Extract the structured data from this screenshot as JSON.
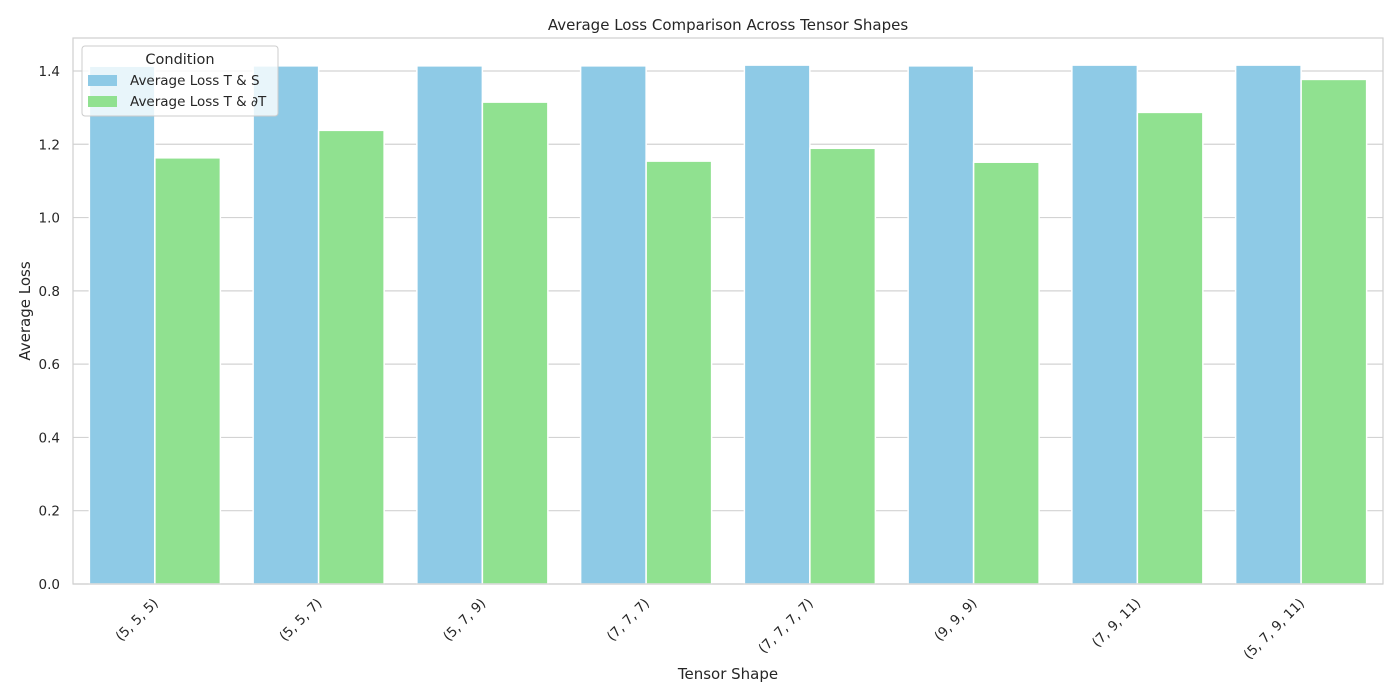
{
  "chart_data": {
    "type": "bar",
    "title": "Average Loss Comparison Across Tensor Shapes",
    "xlabel": "Tensor Shape",
    "ylabel": "Average Loss",
    "categories": [
      "(5, 5, 5)",
      "(5, 5, 7)",
      "(5, 7, 9)",
      "(7, 7, 7)",
      "(7, 7, 7, 7)",
      "(9, 9, 9)",
      "(7, 9, 11)",
      "(5, 7, 9, 11)"
    ],
    "series": [
      {
        "name": "Average Loss T & S",
        "color": "#8ecae6",
        "values": [
          1.413,
          1.414,
          1.414,
          1.414,
          1.416,
          1.414,
          1.416,
          1.416
        ]
      },
      {
        "name": "Average Loss T & ∂T",
        "color": "#90e190",
        "values": [
          1.163,
          1.238,
          1.315,
          1.154,
          1.189,
          1.151,
          1.287,
          1.377
        ]
      }
    ],
    "ylim": [
      0,
      1.49
    ],
    "yticks": [
      0.0,
      0.2,
      0.4,
      0.6,
      0.8,
      1.0,
      1.2,
      1.4
    ],
    "ytick_labels": [
      "0.0",
      "0.2",
      "0.4",
      "0.6",
      "0.8",
      "1.0",
      "1.2",
      "1.4"
    ],
    "grid": true,
    "legend": {
      "title": "Condition",
      "position": "top-left"
    }
  }
}
